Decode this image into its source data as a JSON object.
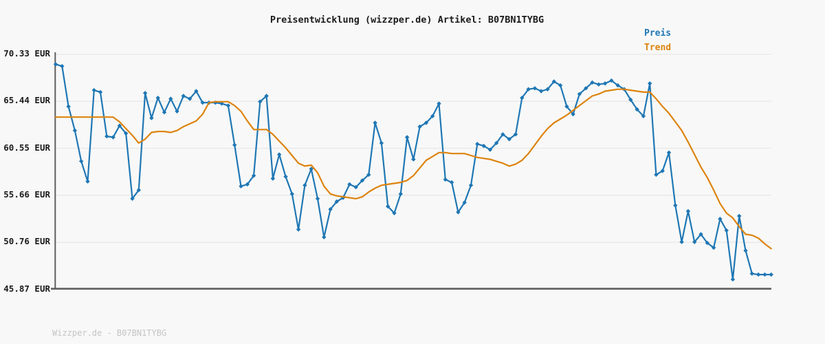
{
  "header": {
    "title": "Preisentwicklung (wizzper.de) Artikel: B07BN1TYBG"
  },
  "footer": {
    "watermark": "Wizzper.de - B07BN1TYBG"
  },
  "colors": {
    "background": "#f8f8f8",
    "grid": "#e8e8e8",
    "spine": "#5f5f5f",
    "text": "#1b1b1b",
    "price_blue": "#1f77b4",
    "trend_orange": "#dd830d",
    "watermark_gray": "#c4c4c4"
  },
  "chart_data": {
    "type": "line",
    "title": "Preisentwicklung (wizzper.de) Artikel: B07BN1TYBG",
    "ylabel": "EUR",
    "ylim": [
      45.87,
      70.33
    ],
    "ytick_values": [
      70.33,
      65.44,
      60.55,
      55.66,
      50.76,
      45.87
    ],
    "ytick_labels": [
      "70.33 EUR",
      "65.44 EUR",
      "60.55 EUR",
      "55.66 EUR",
      "50.76 EUR",
      "45.87 EUR"
    ],
    "xtick_labels": [],
    "grid": "horizontal-only",
    "legend_position": "top-right",
    "series": [
      {
        "name": "Preis",
        "color": "#1f77b4",
        "marker": "diamond",
        "values": [
          69.3,
          69.1,
          64.9,
          62.4,
          59.2,
          57.1,
          66.6,
          66.4,
          61.8,
          61.7,
          62.9,
          62.1,
          55.3,
          56.2,
          66.3,
          63.7,
          65.8,
          64.3,
          65.7,
          64.4,
          66.0,
          65.7,
          66.5,
          65.3,
          65.3,
          65.3,
          65.2,
          65.0,
          60.9,
          56.6,
          56.8,
          57.7,
          65.4,
          66.0,
          57.4,
          59.9,
          57.6,
          55.8,
          52.1,
          56.7,
          58.4,
          55.3,
          51.3,
          54.2,
          55.0,
          55.4,
          56.8,
          56.5,
          57.2,
          57.8,
          63.2,
          61.1,
          54.5,
          53.8,
          55.8,
          61.7,
          59.4,
          62.8,
          63.2,
          63.9,
          65.2,
          57.3,
          57.0,
          53.9,
          54.9,
          56.7,
          61.0,
          60.8,
          60.4,
          61.1,
          62.0,
          61.5,
          62.0,
          65.8,
          66.7,
          66.8,
          66.5,
          66.7,
          67.5,
          67.1,
          64.9,
          64.1,
          66.2,
          66.8,
          67.4,
          67.2,
          67.3,
          67.6,
          67.1,
          66.7,
          65.6,
          64.6,
          63.9,
          67.3,
          57.8,
          58.2,
          60.1,
          54.6,
          50.8,
          54.0,
          50.8,
          51.6,
          50.7,
          50.2,
          53.2,
          52.0,
          46.9,
          53.5,
          49.9,
          47.5,
          47.4,
          47.4,
          47.4
        ]
      },
      {
        "name": "Trend",
        "color": "#dd830d",
        "marker": "none",
        "values": [
          63.8,
          63.8,
          63.8,
          63.8,
          63.8,
          63.8,
          63.8,
          63.8,
          63.8,
          63.8,
          63.3,
          62.6,
          61.9,
          61.1,
          61.5,
          62.2,
          62.3,
          62.3,
          62.2,
          62.4,
          62.8,
          63.1,
          63.4,
          64.1,
          65.3,
          65.4,
          65.4,
          65.4,
          65.0,
          64.4,
          63.4,
          62.5,
          62.5,
          62.5,
          62.0,
          61.3,
          60.6,
          59.8,
          59.0,
          58.7,
          58.8,
          58.0,
          56.6,
          55.8,
          55.6,
          55.5,
          55.4,
          55.3,
          55.5,
          56.0,
          56.4,
          56.7,
          56.8,
          56.9,
          57.0,
          57.2,
          57.7,
          58.5,
          59.3,
          59.7,
          60.1,
          60.1,
          60.0,
          60.0,
          60.0,
          59.8,
          59.6,
          59.5,
          59.4,
          59.2,
          59.0,
          58.7,
          58.9,
          59.3,
          60.0,
          60.9,
          61.8,
          62.6,
          63.2,
          63.6,
          64.0,
          64.5,
          65.0,
          65.5,
          66.0,
          66.2,
          66.5,
          66.6,
          66.7,
          66.7,
          66.6,
          66.5,
          66.4,
          66.4,
          65.7,
          64.9,
          64.2,
          63.3,
          62.4,
          61.2,
          59.9,
          58.6,
          57.5,
          56.2,
          54.8,
          53.8,
          53.3,
          52.4,
          51.6,
          51.5,
          51.2,
          50.6,
          50.1
        ]
      }
    ]
  }
}
